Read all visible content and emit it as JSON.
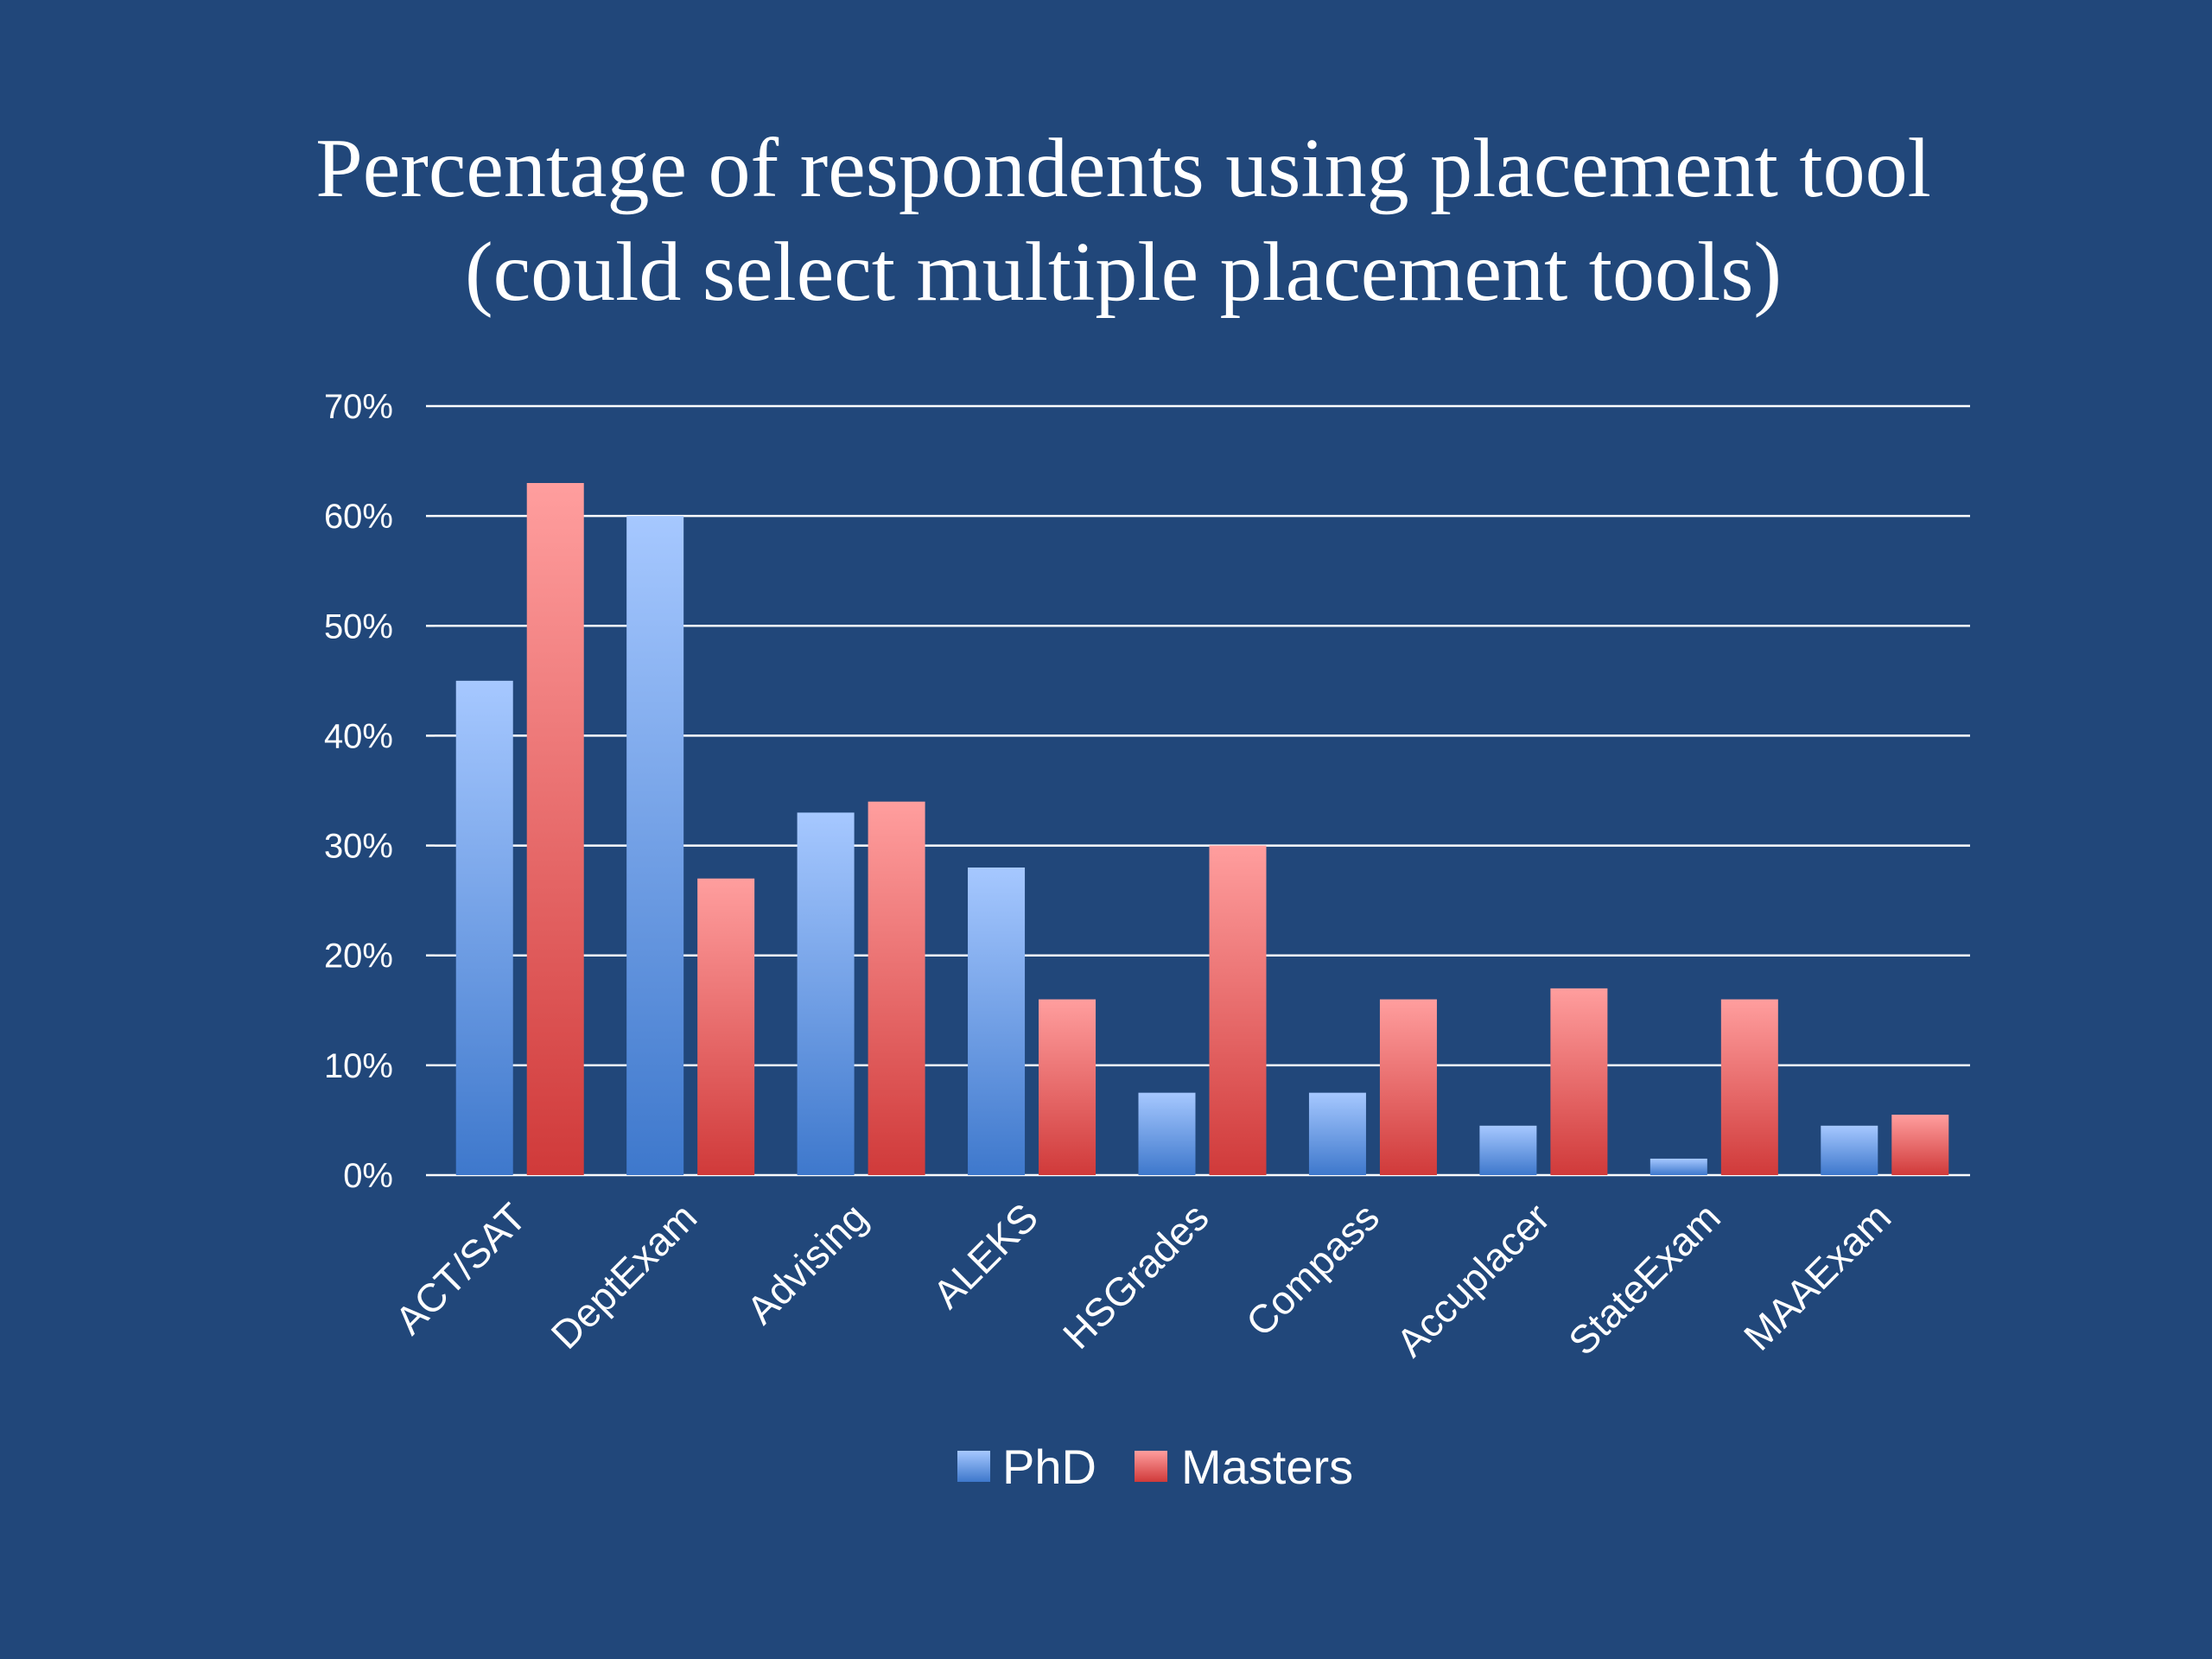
{
  "chart_data": {
    "type": "bar",
    "title_lines": [
      "Percentage of respondents using placement tool",
      "(could select multiple placement tools)"
    ],
    "categories": [
      "ACT/SAT",
      "DeptExam",
      "Advising",
      "ALEKS",
      "HSGrades",
      "Compass",
      "Accuplacer",
      "StateExam",
      "MAAExam"
    ],
    "series": [
      {
        "name": "PhD",
        "values": [
          45,
          60,
          33,
          28,
          7.5,
          7.5,
          4.5,
          1.5,
          4.5
        ],
        "color": "#5B8FDA"
      },
      {
        "name": "Masters",
        "values": [
          63,
          27,
          34,
          16,
          30,
          16,
          17,
          16,
          5.5
        ],
        "color": "#E05252"
      }
    ],
    "ylim": [
      0,
      70
    ],
    "yticks": [
      "0%",
      "10%",
      "20%",
      "30%",
      "40%",
      "50%",
      "60%",
      "70%"
    ],
    "xlabel": "",
    "ylabel": "",
    "grid": true,
    "legend_position": "bottom"
  },
  "colors": {
    "background": "#21477A",
    "gridline": "#ffffff",
    "phd_light": "#A6C8FF",
    "phd_dark": "#3E78CC",
    "masters_light": "#FF9E9E",
    "masters_dark": "#D03A3A"
  }
}
